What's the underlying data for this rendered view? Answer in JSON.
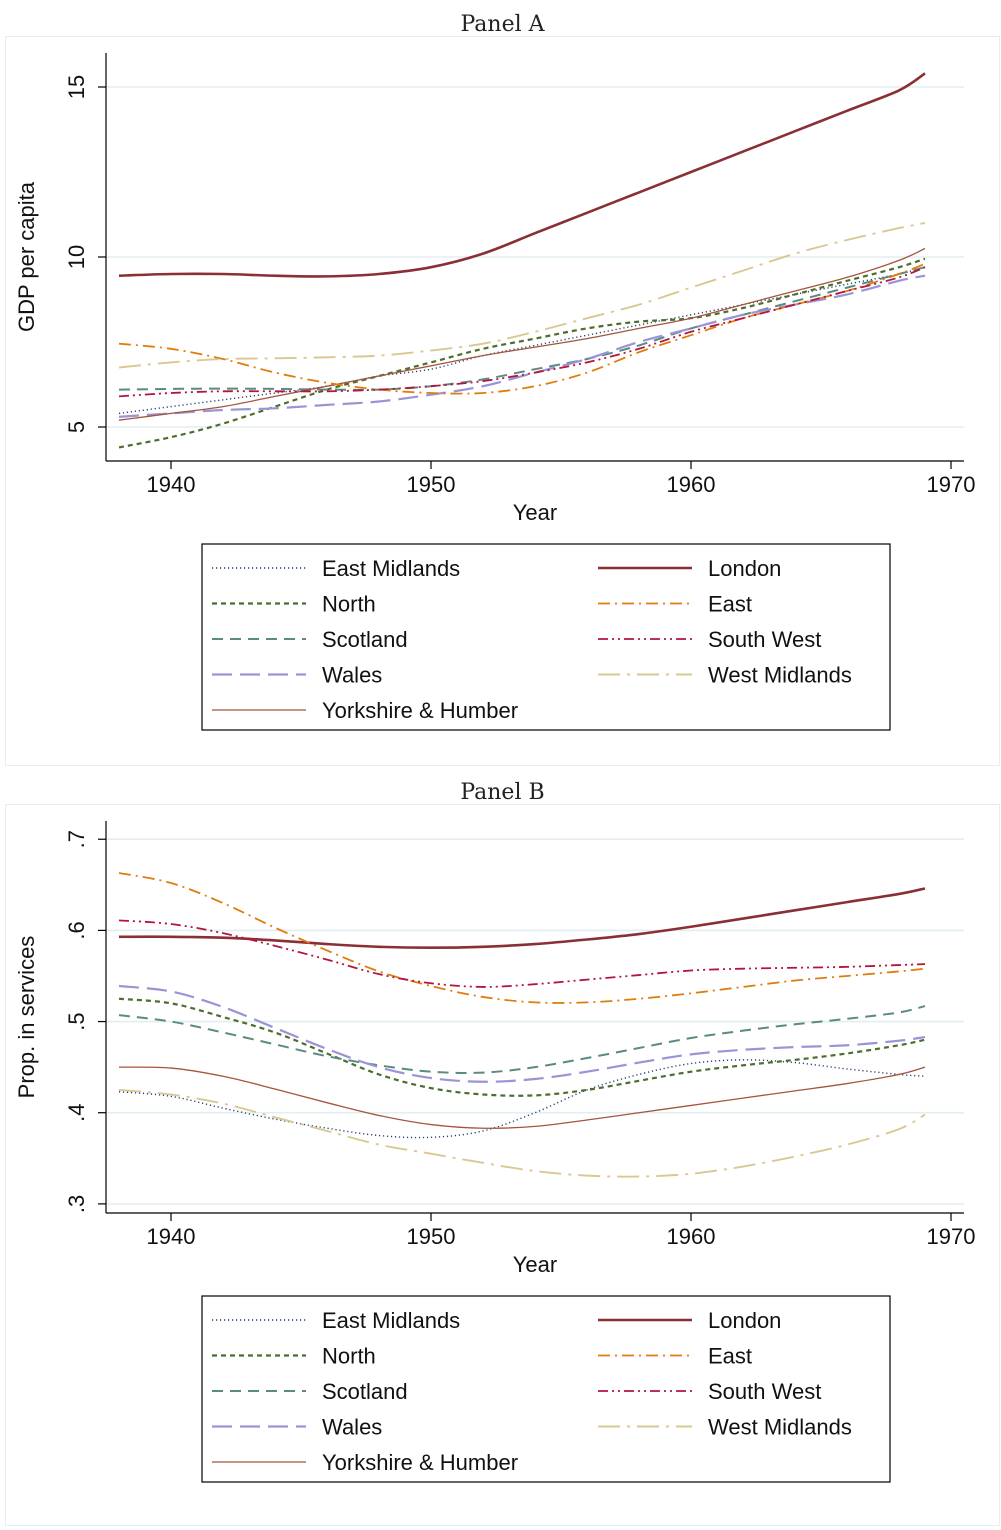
{
  "colors": {
    "East Midlands": "#1f3f6b",
    "North": "#4d6e2e",
    "Scotland": "#5b8a80",
    "Wales": "#9a94d6",
    "Yorkshire & Humber": "#a4553d",
    "London": "#8a2f36",
    "East": "#e07c0c",
    "South West": "#b3153d",
    "West Midlands": "#d9c891"
  },
  "chart_data": [
    {
      "type": "line",
      "title": "Panel A",
      "xlabel": "Year",
      "ylabel": "GDP per capita",
      "xlim": [
        1937.5,
        1970.5
      ],
      "ylim": [
        4.0,
        16.0
      ],
      "xticks": [
        1940,
        1950,
        1960,
        1970
      ],
      "yticks": [
        5,
        10,
        15
      ],
      "ytick_labels": [
        "5",
        "10",
        "15"
      ],
      "grid": true,
      "legend_position": "bottom",
      "x": [
        1938,
        1940,
        1942,
        1944,
        1946,
        1948,
        1950,
        1952,
        1954,
        1956,
        1958,
        1960,
        1962,
        1964,
        1966,
        1968,
        1969
      ],
      "series": [
        {
          "name": "East Midlands",
          "style": "dotted",
          "values": [
            5.4,
            5.6,
            5.8,
            6.0,
            6.2,
            6.5,
            6.7,
            7.1,
            7.4,
            7.7,
            8.0,
            8.3,
            8.6,
            8.9,
            9.2,
            9.5,
            9.7
          ]
        },
        {
          "name": "North",
          "style": "shortdash",
          "values": [
            4.4,
            4.7,
            5.1,
            5.6,
            6.1,
            6.5,
            6.9,
            7.3,
            7.6,
            7.9,
            8.1,
            8.2,
            8.5,
            8.9,
            9.3,
            9.7,
            9.95
          ]
        },
        {
          "name": "Scotland",
          "style": "dash",
          "values": [
            6.1,
            6.12,
            6.13,
            6.12,
            6.1,
            6.1,
            6.2,
            6.4,
            6.7,
            7.0,
            7.4,
            7.9,
            8.3,
            8.7,
            9.1,
            9.5,
            9.7
          ]
        },
        {
          "name": "Wales",
          "style": "longdash",
          "values": [
            5.3,
            5.4,
            5.5,
            5.55,
            5.65,
            5.75,
            5.95,
            6.2,
            6.6,
            7.0,
            7.5,
            7.9,
            8.3,
            8.6,
            8.9,
            9.3,
            9.45
          ]
        },
        {
          "name": "Yorkshire & Humber",
          "style": "solid-thin",
          "values": [
            5.2,
            5.4,
            5.6,
            5.9,
            6.2,
            6.5,
            6.8,
            7.1,
            7.35,
            7.6,
            7.9,
            8.2,
            8.6,
            9.0,
            9.4,
            9.9,
            10.25
          ]
        },
        {
          "name": "London",
          "style": "solid",
          "values": [
            9.45,
            9.5,
            9.5,
            9.45,
            9.43,
            9.5,
            9.7,
            10.1,
            10.7,
            11.3,
            11.9,
            12.5,
            13.1,
            13.7,
            14.3,
            14.9,
            15.4
          ]
        },
        {
          "name": "East",
          "style": "dashdot",
          "values": [
            7.45,
            7.3,
            7.0,
            6.6,
            6.3,
            6.1,
            6.0,
            6.0,
            6.2,
            6.6,
            7.2,
            7.7,
            8.2,
            8.6,
            9.0,
            9.5,
            9.8
          ]
        },
        {
          "name": "South West",
          "style": "dashdotdot",
          "values": [
            5.9,
            6.0,
            6.05,
            6.05,
            6.05,
            6.1,
            6.2,
            6.35,
            6.6,
            6.9,
            7.3,
            7.8,
            8.2,
            8.6,
            9.0,
            9.4,
            9.7
          ]
        },
        {
          "name": "West Midlands",
          "style": "longdashdot",
          "values": [
            6.75,
            6.9,
            7.0,
            7.02,
            7.05,
            7.1,
            7.25,
            7.45,
            7.8,
            8.2,
            8.6,
            9.1,
            9.6,
            10.1,
            10.5,
            10.85,
            11.0
          ]
        }
      ]
    },
    {
      "type": "line",
      "title": "Panel B",
      "xlabel": "Year",
      "ylabel": "Prop. in services",
      "xlim": [
        1937.5,
        1970.5
      ],
      "ylim": [
        0.29,
        0.72
      ],
      "xticks": [
        1940,
        1950,
        1960,
        1970
      ],
      "yticks": [
        0.3,
        0.4,
        0.5,
        0.6,
        0.7
      ],
      "ytick_labels": [
        ".3",
        ".4",
        ".5",
        ".6",
        ".7"
      ],
      "grid": true,
      "legend_position": "bottom",
      "x": [
        1938,
        1940,
        1942,
        1944,
        1946,
        1948,
        1950,
        1952,
        1954,
        1956,
        1958,
        1960,
        1962,
        1964,
        1966,
        1968,
        1969
      ],
      "series": [
        {
          "name": "East Midlands",
          "style": "dotted",
          "values": [
            0.423,
            0.418,
            0.405,
            0.393,
            0.383,
            0.375,
            0.373,
            0.38,
            0.4,
            0.425,
            0.442,
            0.454,
            0.458,
            0.455,
            0.448,
            0.442,
            0.44
          ]
        },
        {
          "name": "North",
          "style": "shortdash",
          "values": [
            0.525,
            0.52,
            0.505,
            0.488,
            0.465,
            0.442,
            0.427,
            0.42,
            0.419,
            0.425,
            0.435,
            0.445,
            0.452,
            0.458,
            0.465,
            0.474,
            0.48
          ]
        },
        {
          "name": "Scotland",
          "style": "dash",
          "values": [
            0.507,
            0.5,
            0.488,
            0.475,
            0.462,
            0.452,
            0.445,
            0.444,
            0.45,
            0.46,
            0.471,
            0.482,
            0.49,
            0.497,
            0.503,
            0.51,
            0.517
          ]
        },
        {
          "name": "Wales",
          "style": "longdash",
          "values": [
            0.539,
            0.533,
            0.516,
            0.493,
            0.47,
            0.45,
            0.438,
            0.434,
            0.437,
            0.445,
            0.455,
            0.464,
            0.469,
            0.472,
            0.474,
            0.479,
            0.483
          ]
        },
        {
          "name": "Yorkshire & Humber",
          "style": "solid-thin",
          "values": [
            0.45,
            0.449,
            0.44,
            0.426,
            0.411,
            0.397,
            0.387,
            0.383,
            0.385,
            0.392,
            0.4,
            0.408,
            0.416,
            0.424,
            0.432,
            0.442,
            0.45
          ]
        },
        {
          "name": "London",
          "style": "solid",
          "values": [
            0.593,
            0.593,
            0.592,
            0.589,
            0.585,
            0.582,
            0.581,
            0.582,
            0.585,
            0.59,
            0.596,
            0.604,
            0.613,
            0.622,
            0.631,
            0.64,
            0.646
          ]
        },
        {
          "name": "East",
          "style": "dashdot",
          "values": [
            0.663,
            0.652,
            0.63,
            0.603,
            0.578,
            0.555,
            0.539,
            0.527,
            0.521,
            0.521,
            0.525,
            0.531,
            0.538,
            0.545,
            0.55,
            0.555,
            0.558
          ]
        },
        {
          "name": "South West",
          "style": "dashdotdot",
          "values": [
            0.611,
            0.607,
            0.597,
            0.583,
            0.568,
            0.552,
            0.542,
            0.538,
            0.541,
            0.546,
            0.551,
            0.556,
            0.558,
            0.559,
            0.56,
            0.562,
            0.563
          ]
        },
        {
          "name": "West Midlands",
          "style": "longdashdot",
          "values": [
            0.425,
            0.42,
            0.41,
            0.395,
            0.38,
            0.365,
            0.355,
            0.345,
            0.336,
            0.331,
            0.33,
            0.333,
            0.341,
            0.352,
            0.365,
            0.382,
            0.398
          ]
        }
      ]
    }
  ]
}
